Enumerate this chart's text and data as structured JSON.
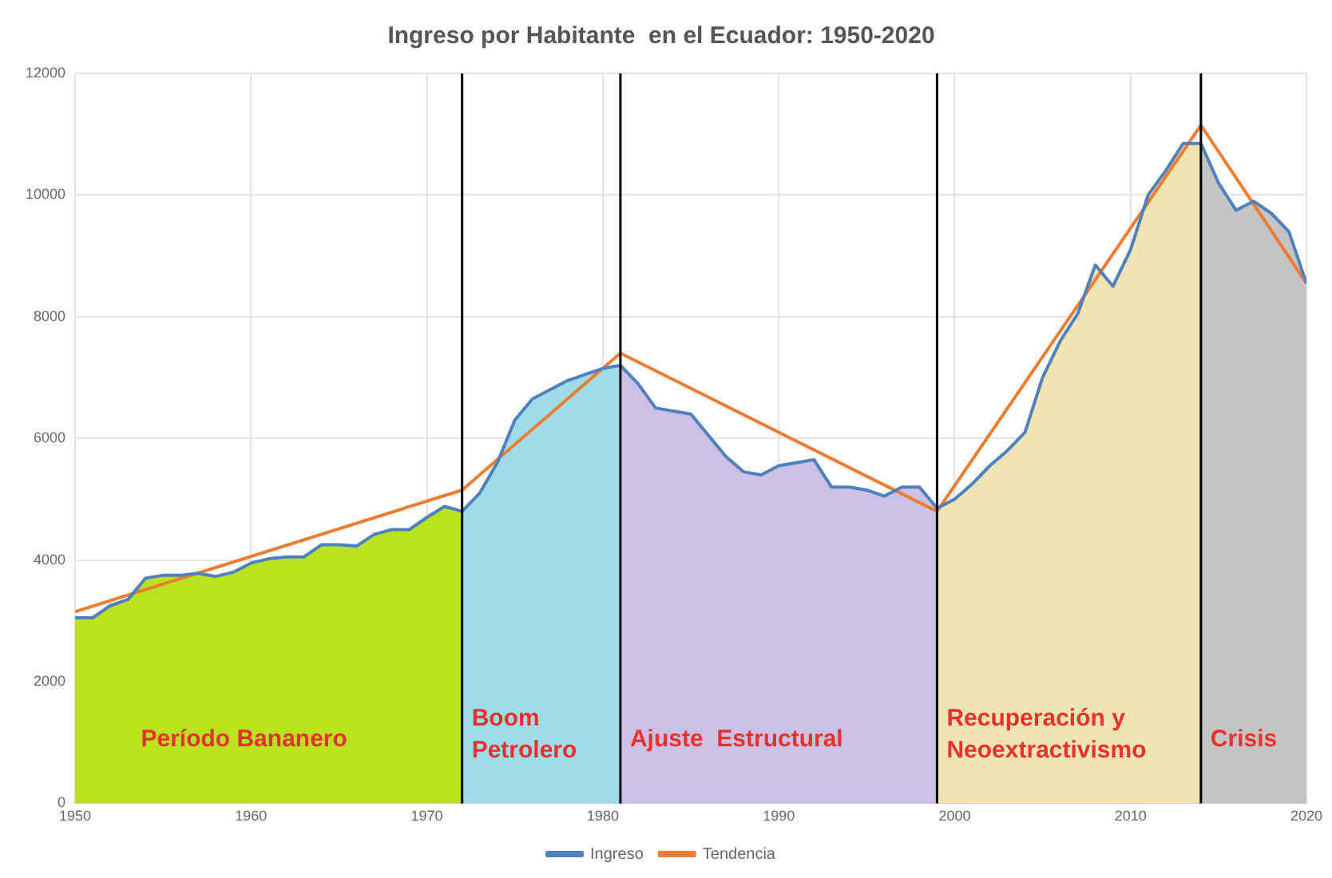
{
  "chart_data": {
    "type": "line",
    "title": "Ingreso por Habitante  en el Ecuador: 1950-2020",
    "xlim": [
      1950,
      2020
    ],
    "xticks": [
      1950,
      1960,
      1970,
      1980,
      1990,
      2000,
      2010,
      2020
    ],
    "ylim": [
      0,
      12000
    ],
    "yticks": [
      0,
      2000,
      4000,
      6000,
      8000,
      10000,
      12000
    ],
    "grid": true,
    "legend": "bottom",
    "marker": "none",
    "line_style": "solid",
    "series": [
      {
        "name": "Período Bananero",
        "type": "area",
        "color": "#b9e31f",
        "x": [
          1950,
          1951,
          1952,
          1953,
          1954,
          1955,
          1956,
          1957,
          1958,
          1959,
          1960,
          1961,
          1962,
          1963,
          1964,
          1965,
          1966,
          1967,
          1968,
          1969,
          1970,
          1971,
          1972
        ],
        "values": [
          3050,
          3050,
          3250,
          3350,
          3700,
          3750,
          3750,
          3780,
          3730,
          3800,
          3950,
          4020,
          4050,
          4050,
          4250,
          4250,
          4230,
          4420,
          4500,
          4500,
          4700,
          4880,
          4800
        ]
      },
      {
        "name": "Boom Petrolero",
        "type": "area",
        "color": "#a0dbe9",
        "x": [
          1972,
          1973,
          1974,
          1975,
          1976,
          1977,
          1978,
          1979,
          1980,
          1981
        ],
        "values": [
          4800,
          5100,
          5600,
          6300,
          6650,
          6800,
          6950,
          7050,
          7150,
          7200
        ]
      },
      {
        "name": "Ajuste  Estructural",
        "type": "area",
        "color": "#cdc0e6",
        "x": [
          1981,
          1982,
          1983,
          1984,
          1985,
          1986,
          1987,
          1988,
          1989,
          1990,
          1991,
          1992,
          1993,
          1994,
          1995,
          1996,
          1997,
          1998,
          1999
        ],
        "values": [
          7200,
          6900,
          6500,
          6450,
          6400,
          6050,
          5700,
          5450,
          5400,
          5550,
          5600,
          5650,
          5200,
          5200,
          5150,
          5050,
          5200,
          5200,
          4850
        ]
      },
      {
        "name": "Recuperación y Neoextractivismo",
        "type": "area",
        "color": "#f1e4b3",
        "x": [
          1999,
          2000,
          2001,
          2002,
          2003,
          2004,
          2005,
          2006,
          2007,
          2008,
          2009,
          2010,
          2011,
          2012,
          2013,
          2014
        ],
        "values": [
          4850,
          5000,
          5250,
          5550,
          5800,
          6100,
          7000,
          7600,
          8050,
          8850,
          8500,
          9100,
          10000,
          10400,
          10850,
          10850
        ]
      },
      {
        "name": "Crisis",
        "type": "area",
        "color": "#c4c4c4",
        "x": [
          2014,
          2015,
          2016,
          2017,
          2018,
          2019,
          2020
        ],
        "values": [
          10850,
          10200,
          9750,
          9900,
          9700,
          9400,
          8550
        ]
      },
      {
        "name": "Ingreso",
        "color": "#4f81bd",
        "x": [
          1950,
          1951,
          1952,
          1953,
          1954,
          1955,
          1956,
          1957,
          1958,
          1959,
          1960,
          1961,
          1962,
          1963,
          1964,
          1965,
          1966,
          1967,
          1968,
          1969,
          1970,
          1971,
          1972,
          1973,
          1974,
          1975,
          1976,
          1977,
          1978,
          1979,
          1980,
          1981,
          1982,
          1983,
          1984,
          1985,
          1986,
          1987,
          1988,
          1989,
          1990,
          1991,
          1992,
          1993,
          1994,
          1995,
          1996,
          1997,
          1998,
          1999,
          2000,
          2001,
          2002,
          2003,
          2004,
          2005,
          2006,
          2007,
          2008,
          2009,
          2010,
          2011,
          2012,
          2013,
          2014,
          2015,
          2016,
          2017,
          2018,
          2019,
          2020
        ],
        "values": [
          3050,
          3050,
          3250,
          3350,
          3700,
          3750,
          3750,
          3780,
          3730,
          3800,
          3950,
          4020,
          4050,
          4050,
          4250,
          4250,
          4230,
          4420,
          4500,
          4500,
          4700,
          4880,
          4800,
          5100,
          5600,
          6300,
          6650,
          6800,
          6950,
          7050,
          7150,
          7200,
          6900,
          6500,
          6450,
          6400,
          6050,
          5700,
          5450,
          5400,
          5550,
          5600,
          5650,
          5200,
          5200,
          5150,
          5050,
          5200,
          5200,
          4850,
          5000,
          5250,
          5550,
          5800,
          6100,
          7000,
          7600,
          8050,
          8850,
          8500,
          9100,
          10000,
          10400,
          10850,
          10850,
          10200,
          9750,
          9900,
          9700,
          9400,
          8550
        ]
      },
      {
        "name": "Tendencia",
        "color": "#ed7d31",
        "x": [
          1950,
          1972,
          1981,
          1999,
          2014,
          2020
        ],
        "values": [
          3150,
          5150,
          7400,
          4800,
          11150,
          8550
        ]
      }
    ],
    "ref_lines": [
      {
        "axis": "x",
        "value": 1972,
        "color": "#000000"
      },
      {
        "axis": "x",
        "value": 1981,
        "color": "#000000"
      },
      {
        "axis": "x",
        "value": 1999,
        "color": "#000000"
      },
      {
        "axis": "x",
        "value": 2014,
        "color": "#000000"
      }
    ]
  }
}
